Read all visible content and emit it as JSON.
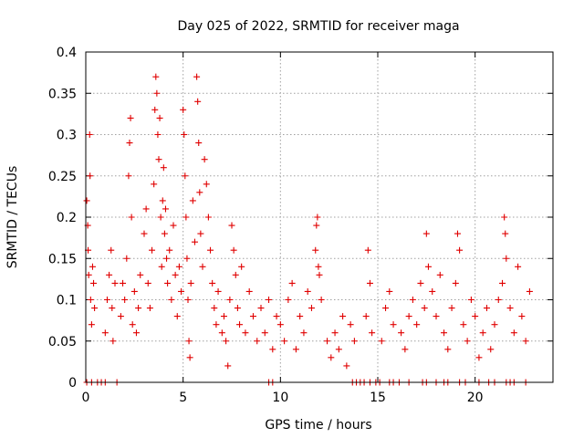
{
  "chart_data": {
    "type": "scatter",
    "title": "Day 025 of 2022, SRMTID for receiver maga",
    "xlabel": "GPS time / hours",
    "ylabel": "SRMTID / TECUs",
    "xlim": [
      0,
      24
    ],
    "ylim": [
      0,
      0.4
    ],
    "xticks": [
      0,
      5,
      10,
      15,
      20
    ],
    "xtick_labels": [
      "0",
      "5",
      "10",
      "15",
      "20"
    ],
    "yticks": [
      0,
      0.05,
      0.1,
      0.15,
      0.2,
      0.25,
      0.3,
      0.35,
      0.4
    ],
    "ytick_labels": [
      "0",
      "0.05",
      "0.1",
      "0.15",
      "0.2",
      "0.25",
      "0.3",
      "0.35",
      "0.4"
    ],
    "grid": true,
    "marker": "+",
    "color": "#e00000",
    "series": [
      {
        "name": "SRMTID",
        "points": [
          [
            0.05,
            0.22
          ],
          [
            0.1,
            0.19
          ],
          [
            0.12,
            0.16
          ],
          [
            0.15,
            0.13
          ],
          [
            0.2,
            0.3
          ],
          [
            0.22,
            0.25
          ],
          [
            0.25,
            0.1
          ],
          [
            0.3,
            0.07
          ],
          [
            0.35,
            0.14
          ],
          [
            0.4,
            0.12
          ],
          [
            0.45,
            0.09
          ],
          [
            1.0,
            0.06
          ],
          [
            1.1,
            0.1
          ],
          [
            1.2,
            0.13
          ],
          [
            1.3,
            0.16
          ],
          [
            1.35,
            0.09
          ],
          [
            1.4,
            0.05
          ],
          [
            1.5,
            0.12
          ],
          [
            1.8,
            0.08
          ],
          [
            1.9,
            0.12
          ],
          [
            2.0,
            0.1
          ],
          [
            2.1,
            0.15
          ],
          [
            2.2,
            0.25
          ],
          [
            2.25,
            0.29
          ],
          [
            2.3,
            0.32
          ],
          [
            2.35,
            0.2
          ],
          [
            2.4,
            0.07
          ],
          [
            2.5,
            0.11
          ],
          [
            2.6,
            0.06
          ],
          [
            2.7,
            0.09
          ],
          [
            2.8,
            0.13
          ],
          [
            3.0,
            0.18
          ],
          [
            3.1,
            0.21
          ],
          [
            3.2,
            0.12
          ],
          [
            3.3,
            0.09
          ],
          [
            3.4,
            0.16
          ],
          [
            3.5,
            0.24
          ],
          [
            3.55,
            0.33
          ],
          [
            3.6,
            0.37
          ],
          [
            3.65,
            0.35
          ],
          [
            3.7,
            0.3
          ],
          [
            3.75,
            0.27
          ],
          [
            3.8,
            0.32
          ],
          [
            3.85,
            0.2
          ],
          [
            3.9,
            0.14
          ],
          [
            3.95,
            0.22
          ],
          [
            4.0,
            0.26
          ],
          [
            4.05,
            0.18
          ],
          [
            4.1,
            0.21
          ],
          [
            4.15,
            0.15
          ],
          [
            4.2,
            0.12
          ],
          [
            4.3,
            0.16
          ],
          [
            4.4,
            0.1
          ],
          [
            4.5,
            0.19
          ],
          [
            4.6,
            0.13
          ],
          [
            4.7,
            0.08
          ],
          [
            4.8,
            0.14
          ],
          [
            4.9,
            0.11
          ],
          [
            5.0,
            0.33
          ],
          [
            5.05,
            0.3
          ],
          [
            5.1,
            0.25
          ],
          [
            5.15,
            0.2
          ],
          [
            5.2,
            0.15
          ],
          [
            5.25,
            0.1
          ],
          [
            5.3,
            0.05
          ],
          [
            5.35,
            0.03
          ],
          [
            5.4,
            0.12
          ],
          [
            5.5,
            0.22
          ],
          [
            5.6,
            0.17
          ],
          [
            5.7,
            0.37
          ],
          [
            5.75,
            0.34
          ],
          [
            5.8,
            0.29
          ],
          [
            5.85,
            0.23
          ],
          [
            5.9,
            0.18
          ],
          [
            6.0,
            0.14
          ],
          [
            6.1,
            0.27
          ],
          [
            6.2,
            0.24
          ],
          [
            6.3,
            0.2
          ],
          [
            6.4,
            0.16
          ],
          [
            6.5,
            0.12
          ],
          [
            6.6,
            0.09
          ],
          [
            6.7,
            0.07
          ],
          [
            6.8,
            0.11
          ],
          [
            7.0,
            0.06
          ],
          [
            7.1,
            0.08
          ],
          [
            7.2,
            0.05
          ],
          [
            7.3,
            0.02
          ],
          [
            7.4,
            0.1
          ],
          [
            7.5,
            0.19
          ],
          [
            7.6,
            0.16
          ],
          [
            7.7,
            0.13
          ],
          [
            7.8,
            0.09
          ],
          [
            7.9,
            0.07
          ],
          [
            8.0,
            0.14
          ],
          [
            8.2,
            0.06
          ],
          [
            8.4,
            0.11
          ],
          [
            8.6,
            0.08
          ],
          [
            8.8,
            0.05
          ],
          [
            9.0,
            0.09
          ],
          [
            9.2,
            0.06
          ],
          [
            9.4,
            0.1
          ],
          [
            9.6,
            0.04
          ],
          [
            9.8,
            0.08
          ],
          [
            10.0,
            0.07
          ],
          [
            10.2,
            0.05
          ],
          [
            10.4,
            0.1
          ],
          [
            10.6,
            0.12
          ],
          [
            10.8,
            0.04
          ],
          [
            11.0,
            0.08
          ],
          [
            11.2,
            0.06
          ],
          [
            11.4,
            0.11
          ],
          [
            11.6,
            0.09
          ],
          [
            11.8,
            0.16
          ],
          [
            11.85,
            0.19
          ],
          [
            11.9,
            0.2
          ],
          [
            11.95,
            0.14
          ],
          [
            12.0,
            0.13
          ],
          [
            12.1,
            0.1
          ],
          [
            12.4,
            0.05
          ],
          [
            12.6,
            0.03
          ],
          [
            12.8,
            0.06
          ],
          [
            13.0,
            0.04
          ],
          [
            13.2,
            0.08
          ],
          [
            13.4,
            0.02
          ],
          [
            13.6,
            0.07
          ],
          [
            13.8,
            0.05
          ],
          [
            14.4,
            0.08
          ],
          [
            14.5,
            0.16
          ],
          [
            14.6,
            0.12
          ],
          [
            14.7,
            0.06
          ],
          [
            15.2,
            0.05
          ],
          [
            15.4,
            0.09
          ],
          [
            15.6,
            0.11
          ],
          [
            15.8,
            0.07
          ],
          [
            16.2,
            0.06
          ],
          [
            16.4,
            0.04
          ],
          [
            16.6,
            0.08
          ],
          [
            16.8,
            0.1
          ],
          [
            17.0,
            0.07
          ],
          [
            17.2,
            0.12
          ],
          [
            17.4,
            0.09
          ],
          [
            17.5,
            0.18
          ],
          [
            17.6,
            0.14
          ],
          [
            17.8,
            0.11
          ],
          [
            18.0,
            0.08
          ],
          [
            18.2,
            0.13
          ],
          [
            18.4,
            0.06
          ],
          [
            18.6,
            0.04
          ],
          [
            18.8,
            0.09
          ],
          [
            19.0,
            0.12
          ],
          [
            19.1,
            0.18
          ],
          [
            19.2,
            0.16
          ],
          [
            19.4,
            0.07
          ],
          [
            19.6,
            0.05
          ],
          [
            19.8,
            0.1
          ],
          [
            20.0,
            0.08
          ],
          [
            20.2,
            0.03
          ],
          [
            20.4,
            0.06
          ],
          [
            20.6,
            0.09
          ],
          [
            20.8,
            0.04
          ],
          [
            21.0,
            0.07
          ],
          [
            21.2,
            0.1
          ],
          [
            21.4,
            0.12
          ],
          [
            21.5,
            0.2
          ],
          [
            21.55,
            0.18
          ],
          [
            21.6,
            0.15
          ],
          [
            21.8,
            0.09
          ],
          [
            22.0,
            0.06
          ],
          [
            22.2,
            0.14
          ],
          [
            22.4,
            0.08
          ],
          [
            22.6,
            0.05
          ],
          [
            22.8,
            0.11
          ],
          [
            0.05,
            0.0
          ],
          [
            0.3,
            0.0
          ],
          [
            0.6,
            0.0
          ],
          [
            0.8,
            0.0
          ],
          [
            1.0,
            0.0
          ],
          [
            1.6,
            0.0
          ],
          [
            9.4,
            0.0
          ],
          [
            9.6,
            0.0
          ],
          [
            13.7,
            0.0
          ],
          [
            13.9,
            0.0
          ],
          [
            14.1,
            0.0
          ],
          [
            14.3,
            0.0
          ],
          [
            14.6,
            0.0
          ],
          [
            14.9,
            0.0
          ],
          [
            15.1,
            0.0
          ],
          [
            15.6,
            0.0
          ],
          [
            15.8,
            0.0
          ],
          [
            16.1,
            0.0
          ],
          [
            16.6,
            0.0
          ],
          [
            17.3,
            0.0
          ],
          [
            17.5,
            0.0
          ],
          [
            18.0,
            0.0
          ],
          [
            18.4,
            0.0
          ],
          [
            18.6,
            0.0
          ],
          [
            19.2,
            0.0
          ],
          [
            19.5,
            0.0
          ],
          [
            20.2,
            0.0
          ],
          [
            20.7,
            0.0
          ],
          [
            21.0,
            0.0
          ],
          [
            21.6,
            0.0
          ],
          [
            21.8,
            0.0
          ],
          [
            22.0,
            0.0
          ],
          [
            22.6,
            0.0
          ]
        ]
      }
    ]
  }
}
